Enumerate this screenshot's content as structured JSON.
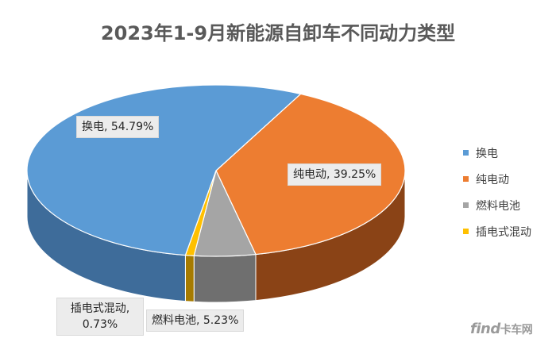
{
  "chart_data": {
    "type": "pie",
    "title": "2023年1-9月新能源自卸车不同动力类型",
    "categories": [
      "换电",
      "纯电动",
      "燃料电池",
      "插电式混动"
    ],
    "values": [
      54.79,
      39.25,
      5.23,
      0.73
    ],
    "labels": [
      "换电, 54.79%",
      "纯电动, 39.25%",
      "燃料电池, 5.23%",
      "插电式混动, 0.73%"
    ],
    "colors": [
      "#5b9bd5",
      "#ed7d31",
      "#a5a5a5",
      "#ffc000"
    ],
    "legend_position": "right",
    "three_d": true
  },
  "watermark": {
    "brand": "find",
    "cn": "卡车网"
  }
}
